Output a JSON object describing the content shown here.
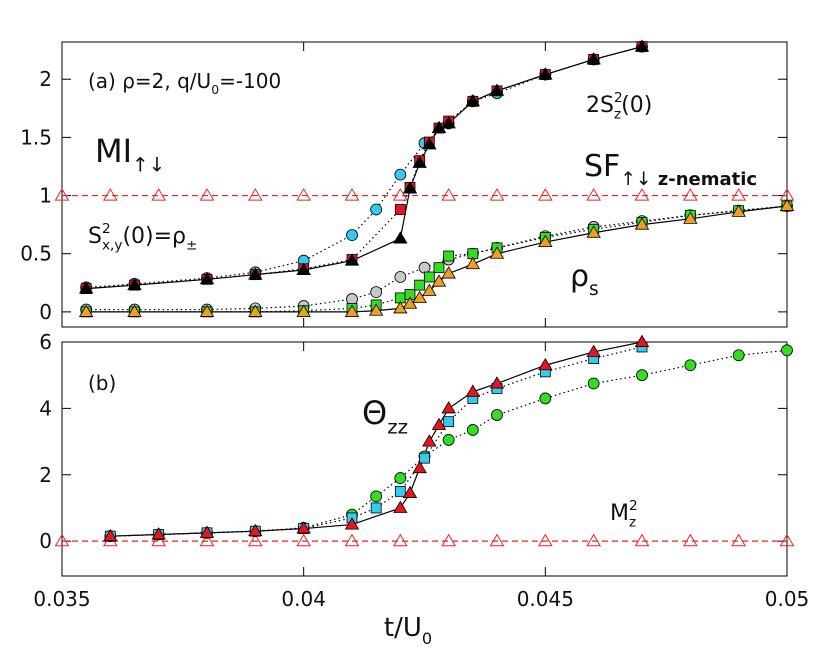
{
  "chart_data": [
    {
      "type": "line",
      "xlim": [
        0.035,
        0.05
      ],
      "ylim": [
        -0.13,
        2.32
      ],
      "yticks": [
        0,
        0.5,
        1,
        1.5,
        2
      ],
      "annotations": [
        {
          "parts": [
            {
              "text": "(a)  ρ=2, q/U"
            },
            {
              "text": "0",
              "pos": "sub"
            },
            {
              "text": "=-100"
            }
          ]
        },
        {
          "parts": [
            {
              "text": "MI"
            },
            {
              "text": "↑↓",
              "pos": "sub"
            }
          ]
        },
        {
          "parts": [
            {
              "text": "S"
            },
            {
              "text": "2",
              "pos": "sup"
            },
            {
              "text": "x,y",
              "pos": "sub-stack"
            },
            {
              "text": "(0)=ρ"
            },
            {
              "text": "±",
              "pos": "sub"
            }
          ]
        },
        {
          "parts": [
            {
              "text": "2S"
            },
            {
              "text": "2",
              "pos": "sup"
            },
            {
              "text": "z",
              "pos": "sub-stack"
            },
            {
              "text": "(0)"
            }
          ]
        },
        {
          "parts": [
            {
              "text": "SF"
            },
            {
              "text": "↑↓",
              "pos": "sub"
            },
            {
              "text": " z-nematic",
              "pos": "sub"
            }
          ]
        },
        {
          "parts": [
            {
              "text": "ρ"
            },
            {
              "text": "s",
              "pos": "sub"
            }
          ]
        }
      ],
      "series": [
        {
          "color": "#ee2222",
          "marker": "open-triangle",
          "line": "dashed",
          "line_color": "#ee2222",
          "x": [
            0.035,
            0.036,
            0.037,
            0.038,
            0.039,
            0.04,
            0.041,
            0.042,
            0.043,
            0.044,
            0.045,
            0.046,
            0.047,
            0.048,
            0.049,
            0.05
          ],
          "values": [
            1,
            1,
            1,
            1,
            1,
            1,
            1,
            1,
            1,
            1,
            1,
            1,
            1,
            1,
            1,
            1
          ]
        },
        {
          "color": "#33ccee",
          "marker": "circle",
          "line": "dotted",
          "line_color": "#000000",
          "x": [
            0.0355,
            0.0365,
            0.038,
            0.039,
            0.04,
            0.041,
            0.0415,
            0.042,
            0.0425,
            0.043,
            0.0435,
            0.044,
            0.045,
            0.046,
            0.047
          ],
          "values": [
            0.21,
            0.24,
            0.29,
            0.34,
            0.44,
            0.66,
            0.88,
            1.18,
            1.45,
            1.62,
            1.81,
            1.88,
            2.04,
            2.17,
            2.28
          ]
        },
        {
          "color": "#e8141e",
          "marker": "square",
          "line": "dotted",
          "line_color": "#000000",
          "x": [
            0.0355,
            0.0365,
            0.038,
            0.039,
            0.04,
            0.041,
            0.042,
            0.0422,
            0.0424,
            0.0426,
            0.0428,
            0.043,
            0.0435,
            0.044,
            0.045,
            0.046,
            0.047
          ],
          "values": [
            0.2,
            0.23,
            0.28,
            0.32,
            0.37,
            0.45,
            0.88,
            1.07,
            1.3,
            1.46,
            1.58,
            1.64,
            1.81,
            1.9,
            2.04,
            2.17,
            2.28
          ]
        },
        {
          "color": "#000000",
          "marker": "triangle",
          "line": "solid",
          "line_color": "#000000",
          "x": [
            0.0355,
            0.0365,
            0.038,
            0.039,
            0.04,
            0.041,
            0.042,
            0.0422,
            0.0424,
            0.0426,
            0.0428,
            0.043,
            0.0435,
            0.044,
            0.045,
            0.046,
            0.047
          ],
          "values": [
            0.2,
            0.23,
            0.28,
            0.32,
            0.36,
            0.44,
            0.63,
            1.06,
            1.28,
            1.44,
            1.58,
            1.62,
            1.81,
            1.9,
            2.04,
            2.17,
            2.28
          ]
        },
        {
          "color": "#c8c8c8",
          "marker": "circle",
          "line": "dotted",
          "line_color": "#000000",
          "x": [
            0.0355,
            0.0365,
            0.038,
            0.039,
            0.04,
            0.041,
            0.0415,
            0.042,
            0.0425,
            0.043,
            0.0435,
            0.044,
            0.045,
            0.046,
            0.047,
            0.048,
            0.049,
            0.05
          ],
          "values": [
            0.02,
            0.02,
            0.02,
            0.03,
            0.05,
            0.11,
            0.17,
            0.3,
            0.38,
            0.45,
            0.5,
            0.55,
            0.65,
            0.73,
            0.78,
            0.83,
            0.87,
            0.91
          ]
        },
        {
          "color": "#33dd22",
          "marker": "square",
          "line": "dotted",
          "line_color": "#000000",
          "x": [
            0.0355,
            0.0365,
            0.038,
            0.039,
            0.04,
            0.041,
            0.0415,
            0.042,
            0.0422,
            0.0424,
            0.0426,
            0.0428,
            0.043,
            0.0435,
            0.044,
            0.045,
            0.046,
            0.047,
            0.048,
            0.049,
            0.05
          ],
          "values": [
            0,
            0,
            0,
            0,
            0.01,
            0.03,
            0.06,
            0.12,
            0.15,
            0.23,
            0.3,
            0.38,
            0.48,
            0.5,
            0.55,
            0.64,
            0.71,
            0.77,
            0.83,
            0.87,
            0.91
          ]
        },
        {
          "color": "#f0a020",
          "marker": "triangle",
          "line": "solid",
          "line_color": "#000000",
          "x": [
            0.0355,
            0.0365,
            0.038,
            0.039,
            0.04,
            0.041,
            0.0415,
            0.042,
            0.0422,
            0.0424,
            0.0426,
            0.0428,
            0.043,
            0.0435,
            0.044,
            0.045,
            0.046,
            0.047,
            0.048,
            0.049,
            0.05
          ],
          "values": [
            0,
            0,
            0,
            0,
            0,
            0,
            0.01,
            0.03,
            0.07,
            0.12,
            0.18,
            0.26,
            0.33,
            0.41,
            0.5,
            0.6,
            0.68,
            0.75,
            0.8,
            0.86,
            0.91
          ]
        }
      ]
    },
    {
      "type": "line",
      "xlim": [
        0.035,
        0.05
      ],
      "ylim": [
        -1.05,
        6
      ],
      "xticks": [
        0.035,
        0.04,
        0.045,
        0.05
      ],
      "yticks": [
        0,
        2,
        4,
        6
      ],
      "xlabel": {
        "parts": [
          {
            "text": "t/U"
          },
          {
            "text": "0",
            "pos": "sub"
          }
        ]
      },
      "annotations": [
        {
          "parts": [
            {
              "text": "(b)"
            }
          ]
        },
        {
          "parts": [
            {
              "text": "Θ"
            },
            {
              "text": "zz",
              "pos": "sub"
            }
          ]
        },
        {
          "parts": [
            {
              "text": "M"
            },
            {
              "text": "2",
              "pos": "sup"
            },
            {
              "text": "z",
              "pos": "sub-stack"
            }
          ]
        }
      ],
      "series": [
        {
          "color": "#ee2222",
          "marker": "open-triangle",
          "line": "dashed",
          "line_color": "#ee2222",
          "x": [
            0.035,
            0.036,
            0.037,
            0.038,
            0.039,
            0.04,
            0.041,
            0.042,
            0.043,
            0.044,
            0.045,
            0.046,
            0.047,
            0.048,
            0.049,
            0.05
          ],
          "values": [
            0,
            0,
            0,
            0,
            0,
            0,
            0,
            0,
            0,
            0,
            0,
            0,
            0,
            0,
            0,
            0
          ]
        },
        {
          "color": "#33dd22",
          "marker": "circle",
          "line": "dotted",
          "line_color": "#000000",
          "x": [
            0.036,
            0.037,
            0.038,
            0.039,
            0.04,
            0.041,
            0.0415,
            0.042,
            0.0425,
            0.043,
            0.0435,
            0.044,
            0.045,
            0.046,
            0.047,
            0.048,
            0.049,
            0.05
          ],
          "values": [
            0.15,
            0.2,
            0.25,
            0.3,
            0.4,
            0.8,
            1.35,
            1.9,
            2.55,
            3.05,
            3.35,
            3.8,
            4.3,
            4.75,
            5.0,
            5.3,
            5.6,
            5.75
          ]
        },
        {
          "color": "#33ccee",
          "marker": "square",
          "line": "dotted",
          "line_color": "#000000",
          "x": [
            0.036,
            0.037,
            0.038,
            0.039,
            0.04,
            0.041,
            0.0415,
            0.042,
            0.0425,
            0.043,
            0.0435,
            0.044,
            0.045,
            0.046,
            0.047
          ],
          "values": [
            0.15,
            0.2,
            0.25,
            0.3,
            0.38,
            0.7,
            1.0,
            1.5,
            2.5,
            3.6,
            4.3,
            4.6,
            5.1,
            5.5,
            5.85
          ]
        },
        {
          "color": "#e8141e",
          "marker": "triangle",
          "line": "solid",
          "line_color": "#000000",
          "x": [
            0.036,
            0.037,
            0.038,
            0.039,
            0.04,
            0.041,
            0.042,
            0.0422,
            0.0424,
            0.0426,
            0.0428,
            0.043,
            0.0435,
            0.044,
            0.045,
            0.046,
            0.047
          ],
          "values": [
            0.15,
            0.2,
            0.25,
            0.3,
            0.38,
            0.5,
            1.0,
            1.45,
            2.2,
            3.0,
            3.5,
            4.0,
            4.5,
            4.75,
            5.3,
            5.7,
            6.0
          ]
        }
      ]
    }
  ]
}
